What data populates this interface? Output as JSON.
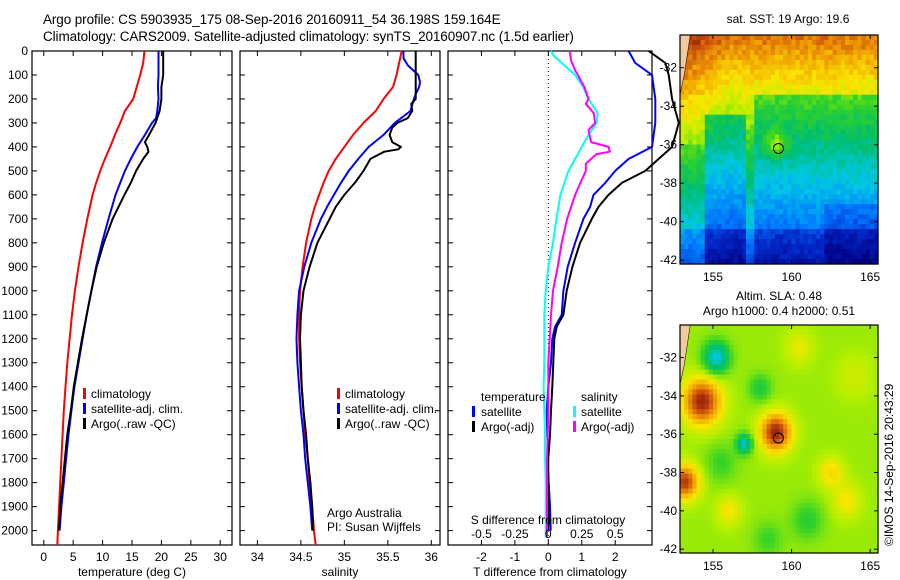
{
  "header": {
    "line1": "Argo profile: CS 5903935_175 08-Sep-2016 20160911_54 36.198S 159.164E",
    "line2": "Climatology: CARS2009. Satellite-adjusted climatology: synTS_20160907.nc (1.5d earlier)"
  },
  "credit": {
    "line1": "Argo Australia",
    "line2": "PI: Susan Wijffels",
    "stamp": "©IMOS 14-Sep-2016 20:43:29"
  },
  "colors": {
    "climatology": "#ff0000",
    "satellite": "#0000ff",
    "argo": "#000000",
    "sal_satellite": "#00ffff",
    "sal_argo": "#ff00ff"
  },
  "chart_data": [
    {
      "type": "line",
      "id": "temperature-profile",
      "xlabel": "temperature (deg C)",
      "ylabel": "",
      "xlim": [
        -2,
        32
      ],
      "ylim": [
        2060,
        0
      ],
      "xticks": [
        0,
        5,
        10,
        15,
        20,
        25,
        30
      ],
      "yticks": [
        0,
        100,
        200,
        300,
        400,
        500,
        600,
        700,
        800,
        900,
        1000,
        1100,
        1200,
        1300,
        1400,
        1500,
        1600,
        1700,
        1800,
        1900,
        2000
      ],
      "legend": {
        "placement": "middle",
        "entries": [
          "climatology",
          "satellite-adj. clim.",
          "Argo(..raw -QC)"
        ]
      },
      "series": [
        {
          "name": "climatology",
          "color": "climatology",
          "depth": [
            0,
            50,
            100,
            150,
            200,
            250,
            300,
            350,
            400,
            450,
            500,
            550,
            600,
            700,
            800,
            900,
            1000,
            1100,
            1200,
            1300,
            1400,
            1500,
            1600,
            1700,
            1800,
            1900,
            2000,
            2060
          ],
          "values": [
            17.1,
            16.9,
            16.4,
            15.8,
            15.2,
            13.8,
            13.0,
            12.1,
            11.3,
            10.4,
            9.6,
            8.9,
            8.3,
            7.4,
            6.6,
            5.9,
            5.3,
            4.8,
            4.4,
            4.0,
            3.7,
            3.4,
            3.2,
            3.0,
            2.8,
            2.6,
            2.4,
            2.3
          ]
        },
        {
          "name": "satellite-adj. clim.",
          "color": "satellite",
          "depth": [
            0,
            50,
            100,
            150,
            200,
            250,
            280,
            300,
            350,
            400,
            450,
            500,
            550,
            600,
            650,
            700,
            800,
            900,
            1000,
            1100,
            1200,
            1300,
            1400,
            1500,
            1600,
            1700,
            1800,
            1900,
            2000
          ],
          "values": [
            19.5,
            19.5,
            19.5,
            19.4,
            19.5,
            19.3,
            19.1,
            18.4,
            17.2,
            15.9,
            14.8,
            13.8,
            13.0,
            12.2,
            11.6,
            11.0,
            9.9,
            8.9,
            8.1,
            7.3,
            6.6,
            5.9,
            5.2,
            4.7,
            4.2,
            3.8,
            3.4,
            3.0,
            2.7
          ]
        },
        {
          "name": "Argo(..raw -QC)",
          "color": "argo",
          "depth": [
            0,
            50,
            100,
            150,
            200,
            250,
            300,
            350,
            380,
            400,
            420,
            450,
            500,
            550,
            600,
            650,
            700,
            800,
            900,
            1000,
            1100,
            1200,
            1300,
            1400,
            1500,
            1600,
            1700,
            1800,
            1900,
            2000
          ],
          "values": [
            20.3,
            20.3,
            20.3,
            20.0,
            20.0,
            19.7,
            19.0,
            17.9,
            17.2,
            17.6,
            17.8,
            16.9,
            15.7,
            14.8,
            13.7,
            12.7,
            11.7,
            10.2,
            9.0,
            8.1,
            7.3,
            6.5,
            5.8,
            5.1,
            4.6,
            4.0,
            3.6,
            3.2,
            2.8,
            2.6
          ]
        }
      ]
    },
    {
      "type": "line",
      "id": "salinity-profile",
      "xlabel": "salinity",
      "xlim": [
        33.8,
        36.1
      ],
      "ylim": [
        2060,
        0
      ],
      "xticks": [
        34,
        34.5,
        35,
        35.5,
        36
      ],
      "legend": {
        "placement": "middle",
        "entries": [
          "climatology",
          "satellite-adj. clim.",
          "Argo(..raw -QC)"
        ]
      },
      "series": [
        {
          "name": "climatology",
          "color": "climatology",
          "depth": [
            0,
            50,
            100,
            150,
            200,
            250,
            300,
            350,
            400,
            450,
            500,
            550,
            600,
            650,
            700,
            800,
            900,
            1000,
            1100,
            1200,
            1300,
            1400,
            1500,
            1600,
            1700,
            1800,
            1900,
            2000,
            2060
          ],
          "values": [
            35.66,
            35.63,
            35.6,
            35.56,
            35.45,
            35.36,
            35.22,
            35.1,
            35.0,
            34.9,
            34.82,
            34.76,
            34.71,
            34.66,
            34.62,
            34.56,
            34.52,
            34.49,
            34.48,
            34.48,
            34.49,
            34.51,
            34.53,
            34.55,
            34.58,
            34.6,
            34.63,
            34.65,
            34.67
          ]
        },
        {
          "name": "satellite-adj. clim.",
          "color": "satellite",
          "depth": [
            0,
            30,
            60,
            100,
            130,
            150,
            180,
            200,
            250,
            300,
            350,
            400,
            450,
            500,
            550,
            600,
            650,
            700,
            800,
            900,
            1000,
            1100,
            1200,
            1300,
            1400,
            1500,
            1600,
            1700,
            1800,
            1900,
            2000
          ],
          "values": [
            35.68,
            35.68,
            35.73,
            35.85,
            35.87,
            35.86,
            35.82,
            35.8,
            35.76,
            35.58,
            35.45,
            35.28,
            35.16,
            35.05,
            34.96,
            34.88,
            34.8,
            34.73,
            34.62,
            34.54,
            34.48,
            34.46,
            34.45,
            34.46,
            34.48,
            34.5,
            34.53,
            34.55,
            34.58,
            34.61,
            34.63
          ]
        },
        {
          "name": "Argo(..raw -QC)",
          "color": "argo",
          "depth": [
            0,
            50,
            100,
            150,
            200,
            220,
            250,
            280,
            300,
            320,
            350,
            380,
            400,
            410,
            420,
            450,
            500,
            550,
            600,
            650,
            700,
            800,
            900,
            1000,
            1100,
            1200,
            1300,
            1400,
            1500,
            1600,
            1700,
            1800,
            1900,
            2000
          ],
          "values": [
            35.82,
            35.82,
            35.82,
            35.82,
            35.82,
            35.77,
            35.78,
            35.73,
            35.61,
            35.55,
            35.52,
            35.55,
            35.65,
            35.62,
            35.46,
            35.3,
            35.22,
            35.12,
            35.0,
            34.9,
            34.83,
            34.69,
            34.6,
            34.53,
            34.5,
            34.49,
            34.5,
            34.51,
            34.53,
            34.56,
            34.58,
            34.61,
            34.63,
            34.64
          ]
        }
      ]
    },
    {
      "type": "line",
      "id": "difference-profile",
      "xlabel": "T difference from climatology",
      "x2label": "S difference from climatology",
      "xlim": [
        -3.0,
        3.1
      ],
      "x2lim": [
        -0.75,
        0.775
      ],
      "ylim": [
        2060,
        0
      ],
      "xticks": [
        -2,
        -1,
        0,
        1,
        2
      ],
      "x2ticks": [
        -0.5,
        -0.25,
        0,
        0.25,
        0.5
      ],
      "zero_line": "dotted",
      "legend": {
        "placement": "middle",
        "temperature_header": "temperature",
        "salinity_header": "salinity",
        "entries_t": [
          "satellite",
          "Argo(-adj)"
        ],
        "entries_s": [
          "satellite",
          "Argo(-adj)"
        ]
      },
      "series": [
        {
          "name": "temperature satellite",
          "axis": "T",
          "color": "satellite",
          "depth": [
            0,
            50,
            100,
            200,
            280,
            300,
            400,
            450,
            500,
            550,
            600,
            650,
            700,
            800,
            900,
            1000,
            1100,
            1150,
            1200,
            1300,
            1400,
            1500,
            1600,
            1700,
            1800,
            1900,
            2000
          ],
          "values": [
            2.4,
            2.6,
            3.1,
            3.2,
            3.2,
            3.2,
            3.1,
            2.4,
            2.0,
            1.7,
            1.35,
            1.25,
            1.05,
            0.8,
            0.58,
            0.45,
            0.4,
            0.2,
            0.12,
            0.08,
            0.0,
            -0.05,
            -0.03,
            -0.01,
            0.01,
            0.05,
            0.07
          ]
        },
        {
          "name": "temperature Argo(-adj)",
          "axis": "T",
          "color": "argo",
          "depth": [
            0,
            50,
            100,
            200,
            300,
            400,
            450,
            500,
            550,
            600,
            650,
            700,
            800,
            900,
            1000,
            1100,
            1150,
            1200,
            1300,
            1400,
            1500,
            1600,
            1700,
            1800,
            1900,
            2000
          ],
          "values": [
            3.0,
            3.5,
            3.6,
            3.7,
            3.9,
            3.7,
            3.3,
            2.9,
            2.2,
            1.8,
            1.5,
            1.3,
            0.95,
            0.72,
            0.55,
            0.45,
            0.25,
            0.18,
            0.15,
            0.12,
            0.08,
            0.05,
            0.0,
            -0.02,
            0.01,
            0.0
          ]
        },
        {
          "name": "salinity satellite",
          "axis": "S",
          "color": "sal_satellite",
          "depth": [
            0,
            20,
            60,
            100,
            150,
            200,
            260,
            300,
            350,
            400,
            450,
            500,
            550,
            600,
            700,
            800,
            900,
            1000,
            1100,
            1200,
            1300,
            1400,
            1500,
            1600,
            1700,
            1800,
            1900,
            2000,
            2030
          ],
          "values": [
            0.02,
            0.04,
            0.12,
            0.2,
            0.26,
            0.3,
            0.37,
            0.36,
            0.3,
            0.25,
            0.2,
            0.15,
            0.12,
            0.09,
            0.06,
            0.035,
            0.0,
            -0.02,
            -0.03,
            -0.03,
            -0.03,
            -0.035,
            -0.03,
            -0.025,
            -0.025,
            -0.02,
            -0.02,
            -0.02,
            -0.02
          ]
        },
        {
          "name": "salinity Argo(-adj)",
          "axis": "S",
          "color": "sal_argo",
          "depth": [
            0,
            40,
            80,
            100,
            150,
            200,
            220,
            260,
            300,
            330,
            380,
            400,
            420,
            430,
            470,
            500,
            550,
            600,
            700,
            800,
            900,
            1000,
            1100,
            1200,
            1300,
            1400,
            1500,
            1600,
            1700,
            1800,
            1900,
            2000,
            2030
          ],
          "values": [
            0.16,
            0.17,
            0.2,
            0.22,
            0.27,
            0.3,
            0.28,
            0.34,
            0.35,
            0.3,
            0.32,
            0.45,
            0.46,
            0.36,
            0.28,
            0.28,
            0.24,
            0.2,
            0.14,
            0.1,
            0.07,
            0.035,
            0.02,
            0.01,
            0.0,
            0.0,
            0.0,
            -0.005,
            -0.01,
            -0.01,
            -0.01,
            -0.01,
            -0.01
          ]
        }
      ]
    },
    {
      "type": "heatmap",
      "id": "sst-map",
      "title": "sat. SST: 19 Argo: 19.6",
      "xlim": [
        152.9,
        165.5
      ],
      "ylim": [
        -42.2,
        -30.3
      ],
      "xticks": [
        155,
        160,
        165
      ],
      "yticks": [
        -32,
        -34,
        -36,
        -38,
        -40,
        -42
      ],
      "marker": {
        "lon": 159.164,
        "lat": -36.198
      },
      "description": "Warm (orange/brown) water in the north and west, warm eddy at the float position, cooling to green then blue/dark blue in the south."
    },
    {
      "type": "heatmap",
      "id": "sla-map",
      "title": "Altim. SLA: 0.48",
      "subtitle": "Argo h1000: 0.4 h2000: 0.51",
      "xlim": [
        152.9,
        165.5
      ],
      "ylim": [
        -42.2,
        -30.3
      ],
      "xticks": [
        155,
        160,
        165
      ],
      "yticks": [
        -32,
        -34,
        -36,
        -38,
        -40,
        -42
      ],
      "marker": {
        "lon": 159.164,
        "lat": -36.198
      },
      "description": "Mostly green/yellow sea level anomaly field with positive (red/brown) eddies near 154E 34.3S, 159E 36S and 153E 38.5S, and negative (blue) features near 155E 32S and 157E 36.5S."
    }
  ]
}
